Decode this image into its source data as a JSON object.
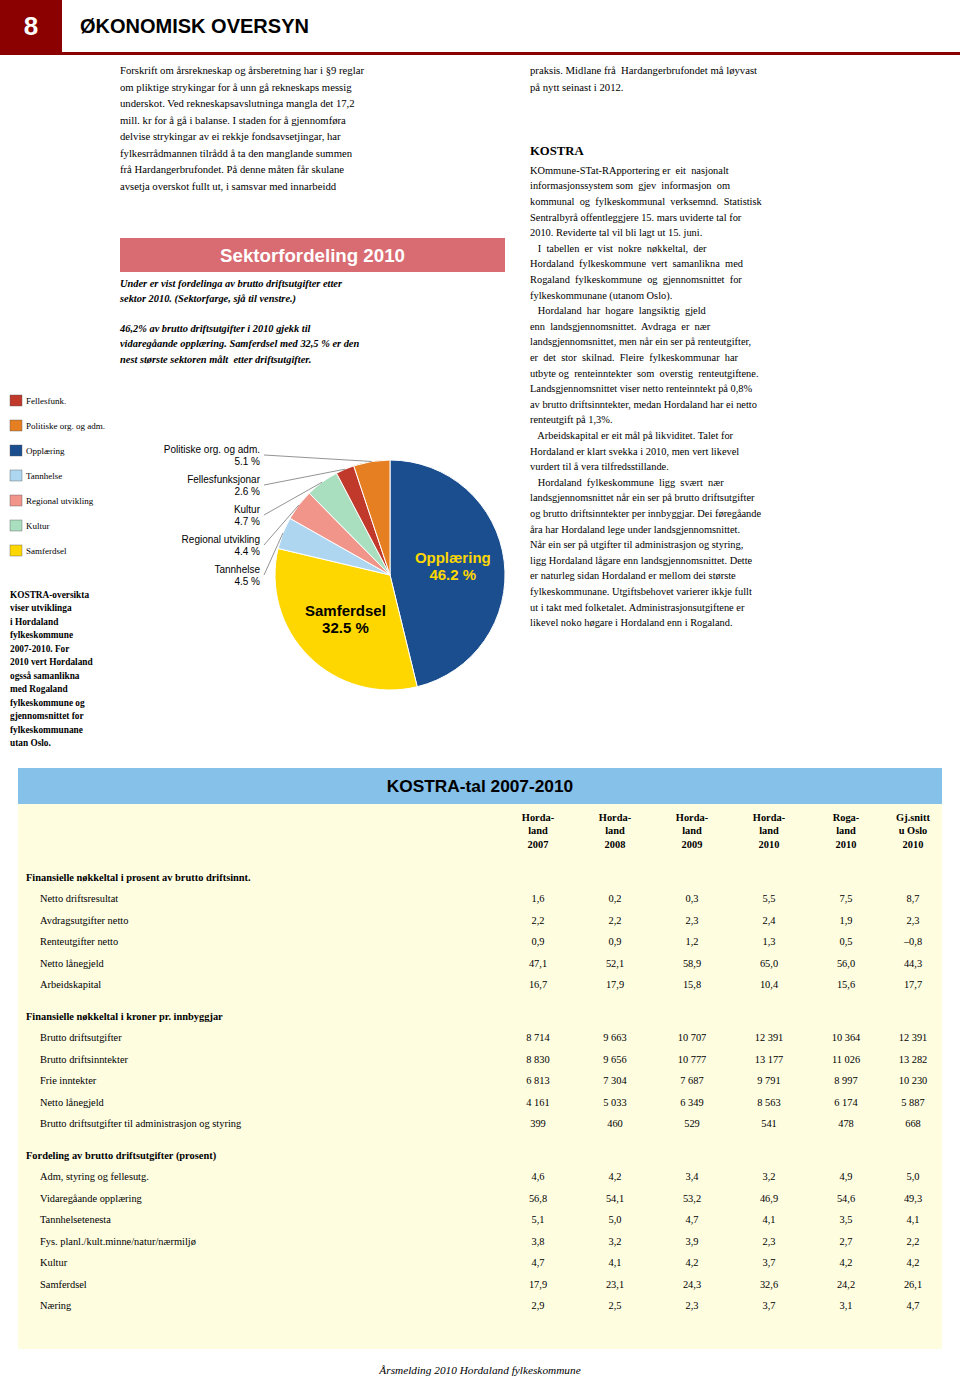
{
  "page": {
    "page_number": "8",
    "header_title": "ØKONOMISK OVERSYN",
    "header_bg": "#8B0000",
    "left_body_text": "Forskrift om årsrekneskap og årsberetning har i §9 reglar\nom pliktige strykingar for å unn gå rekneskaps messig\nunderskot. Ved rekneskapsavslutninga mangla det 17,2\nmill. kr for å gå i balanse. I staden for å gjennomføra\ndelvise strykingar av ei rekkje fondsavsetjingar, har\nfylkesrrådmannen tilrådd å ta den manglande summen\nfrå Hardangerbrufondet. På denne måten får skulane\navsetja overskot fullt ut, i samsvar med innarbeidd",
    "right_top_text": "praksis. Midlane frå  Hardangerbrufondet må løyvast\npå nytt seinast i 2012.",
    "kostra_header": "KOSTRA",
    "kostra_body": "KOmmune-STat-RApportering er  eit  nasjonalt\ninformasjonssystem som  gjev  informasjon  om\nkommunal  og  fylkeskommunal  verksemnd.  Statistisk\nSentralbyrå offentleggjere 15. mars uviderte tal for\n2010. Reviderte tal vil bli lagt ut 15. juni.\n   I  tabellen  er  vist  nokre  nøkkeltal,  der\nHordaland  fylkeskommune  vert  samanlikna  med\nRogaland  fylkeskommune  og  gjennomsnittet  for\nfylkeskommunane (utanom Oslo).\n   Hordaland  har  hogare  langsiktig  gjeld\nenn  landsgjennomsnittet.  Avdraga  er  nær\nlandsgjennomsnittet, men når ein ser på renteutgifter,\ner  det  stor  skilnad.  Fleire  fylkeskommunar  har\nutbyte og  renteinntekter  som  overstig  renteutgiftene.\nLandsgjennomsnittet viser netto renteinntekt på 0,8%\nav brutto driftsinntekter, medan Hordaland har ei netto\nrenteutgift på 1,3%.\n   Arbeidskapital er eit mål på likviditet. Talet for\nHordaland er klart svekka i 2010, men vert likevel\nvurdert til å vera tilfredsstillande.\n   Hordaland  fylkeskommune  ligg  svært  nær\nlandsgjennomsnittet når ein ser på brutto driftsutgifter\nog brutto driftsinntekter per innbyggjar. Dei føregåande\nåra har Hordaland lege under landsgjennomsnittet.\nNår ein ser på utgifter til administrasjon og styring,\nligg Hordaland lågare enn landsgjennomsnittet. Dette\ner naturleg sidan Hordaland er mellom dei største\nfylkeskommunane. Utgiftsbehovet varierer ikkje fullt\nut i takt med folketalet. Administrasjonsutgiftene er\nlikevel noko høgare i Hordaland enn i Rogaland.",
    "kostra_side_text": "KOSTRA-oversikta\nviser utviklinga\ni Hordaland\nfylkeskommune\n2007-2010. For\n2010 vert Hordaland\nogsså samanlikna\nmed Rogaland\nfylkeskommune og\ngjennomsnittet for\nfylkeskommunane\nutan Oslo.",
    "chart_title_bg": "#D96B72",
    "footer": "Årsmelding 2010 Hordaland fylkeskommune"
  },
  "sector_legend": {
    "labels": [
      "Fellesfunk.",
      "Politiske org. og adm.",
      "Opplæring",
      "Tannhelse",
      "Regional utvikling",
      "Kultur",
      "Samferdsel"
    ],
    "colors": [
      "#C0392B",
      "#E67E22",
      "#1B4E8F",
      "#AED6F1",
      "#F1948A",
      "#A9DFBF",
      "#FFD700"
    ]
  },
  "chart_data": {
    "type": "pie",
    "title": "Sektorfordeling 2010",
    "subtitle": [
      "Under er vist fordelinga av brutto driftsutgifter etter\nsektor 2010. (Sektorfarge, sjå til venstre.)",
      "46,2% av brutto driftsutgifter i 2010 gjekk til\nvidaregåande opplæring. Samferdsel med 32,5 % er den\nnest største sektoren målt  etter driftsutgifter."
    ],
    "categories": [
      "Opplæring",
      "Samferdsel",
      "Tannhelse",
      "Regional utvikling",
      "Kultur",
      "Fellesfunksjonar",
      "Politiske org. og adm."
    ],
    "values": [
      46.2,
      32.5,
      4.5,
      4.4,
      4.7,
      2.6,
      5.1
    ],
    "value_labels": [
      "46.2 %",
      "32.5 %",
      "4.5 %",
      "4.4 %",
      "4.7 %",
      "2.6 %",
      "5.1 %"
    ],
    "colors": [
      "#1B4E8F",
      "#FFD700",
      "#AED6F1",
      "#F1948A",
      "#A9DFBF",
      "#C0392B",
      "#E67E22"
    ],
    "label_colors": [
      "#FFD700",
      "#000000",
      "#000000",
      "#000000",
      "#000000",
      "#000000",
      "#000000"
    ],
    "data_labels": true
  },
  "table": {
    "title": "KOSTRA-tal 2007-2010",
    "title_bg": "#85C1E9",
    "bg": "#FEFDE0",
    "col_headers": [
      "Horda-\nland\n2007",
      "Horda-\nland\n2008",
      "Horda-\nland\n2009",
      "Horda-\nland\n2010",
      "Roga-\nland\n2010",
      "Gj.snitt\nu Oslo\n2010"
    ],
    "sections": [
      {
        "header": "Finansielle nøkkeltal i prosent av brutto driftsinnt.",
        "rows": [
          {
            "label": "Netto driftsresultat",
            "vals": [
              "1,6",
              "0,2",
              "0,3",
              "5,5",
              "7,5",
              "8,7"
            ]
          },
          {
            "label": "Avdragsutgifter netto",
            "vals": [
              "2,2",
              "2,2",
              "2,3",
              "2,4",
              "1,9",
              "2,3"
            ]
          },
          {
            "label": "Renteutgifter netto",
            "vals": [
              "0,9",
              "0,9",
              "1,2",
              "1,3",
              "0,5",
              "–0,8"
            ]
          },
          {
            "label": "Netto lånegjeld",
            "vals": [
              "47,1",
              "52,1",
              "58,9",
              "65,0",
              "56,0",
              "44,3"
            ]
          },
          {
            "label": "Arbeidskapital",
            "vals": [
              "16,7",
              "17,9",
              "15,8",
              "10,4",
              "15,6",
              "17,7"
            ]
          }
        ]
      },
      {
        "header": "Finansielle nøkkeltal i kroner pr. innbyggjar",
        "rows": [
          {
            "label": "Brutto driftsutgifter",
            "vals": [
              "8 714",
              "9 663",
              "10 707",
              "12 391",
              "10 364",
              "12 391"
            ]
          },
          {
            "label": "Brutto driftsinntekter",
            "vals": [
              "8 830",
              "9 656",
              "10 777",
              "13 177",
              "11 026",
              "13 282"
            ]
          },
          {
            "label": "Frie inntekter",
            "vals": [
              "6 813",
              "7 304",
              "7 687",
              "9 791",
              "8 997",
              "10 230"
            ]
          },
          {
            "label": "Netto lånegjeld",
            "vals": [
              "4 161",
              "5 033",
              "6 349",
              "8 563",
              "6 174",
              "5 887"
            ]
          },
          {
            "label": "Brutto driftsutgifter til administrasjon og styring",
            "vals": [
              "399",
              "460",
              "529",
              "541",
              "478",
              "668"
            ]
          }
        ]
      },
      {
        "header": "Fordeling av brutto driftsutgifter (prosent)",
        "rows": [
          {
            "label": "Adm, styring og fellesutg.",
            "vals": [
              "4,6",
              "4,2",
              "3,4",
              "3,2",
              "4,9",
              "5,0"
            ]
          },
          {
            "label": "Vidaregåande opplæring",
            "vals": [
              "56,8",
              "54,1",
              "53,2",
              "46,9",
              "54,6",
              "49,3"
            ]
          },
          {
            "label": "Tannhelsetenesta",
            "vals": [
              "5,1",
              "5,0",
              "4,7",
              "4,1",
              "3,5",
              "4,1"
            ]
          },
          {
            "label": "Fys. planl./kult.minne/natur/nærmiljø",
            "vals": [
              "3,8",
              "3,2",
              "3,9",
              "2,3",
              "2,7",
              "2,2"
            ]
          },
          {
            "label": "Kultur",
            "vals": [
              "4,7",
              "4,1",
              "4,2",
              "3,7",
              "4,2",
              "4,2"
            ]
          },
          {
            "label": "Samferdsel",
            "vals": [
              "17,9",
              "23,1",
              "24,3",
              "32,6",
              "24,2",
              "26,1"
            ]
          },
          {
            "label": "Næring",
            "vals": [
              "2,9",
              "2,5",
              "2,3",
              "3,7",
              "3,1",
              "4,7"
            ]
          }
        ]
      }
    ]
  }
}
